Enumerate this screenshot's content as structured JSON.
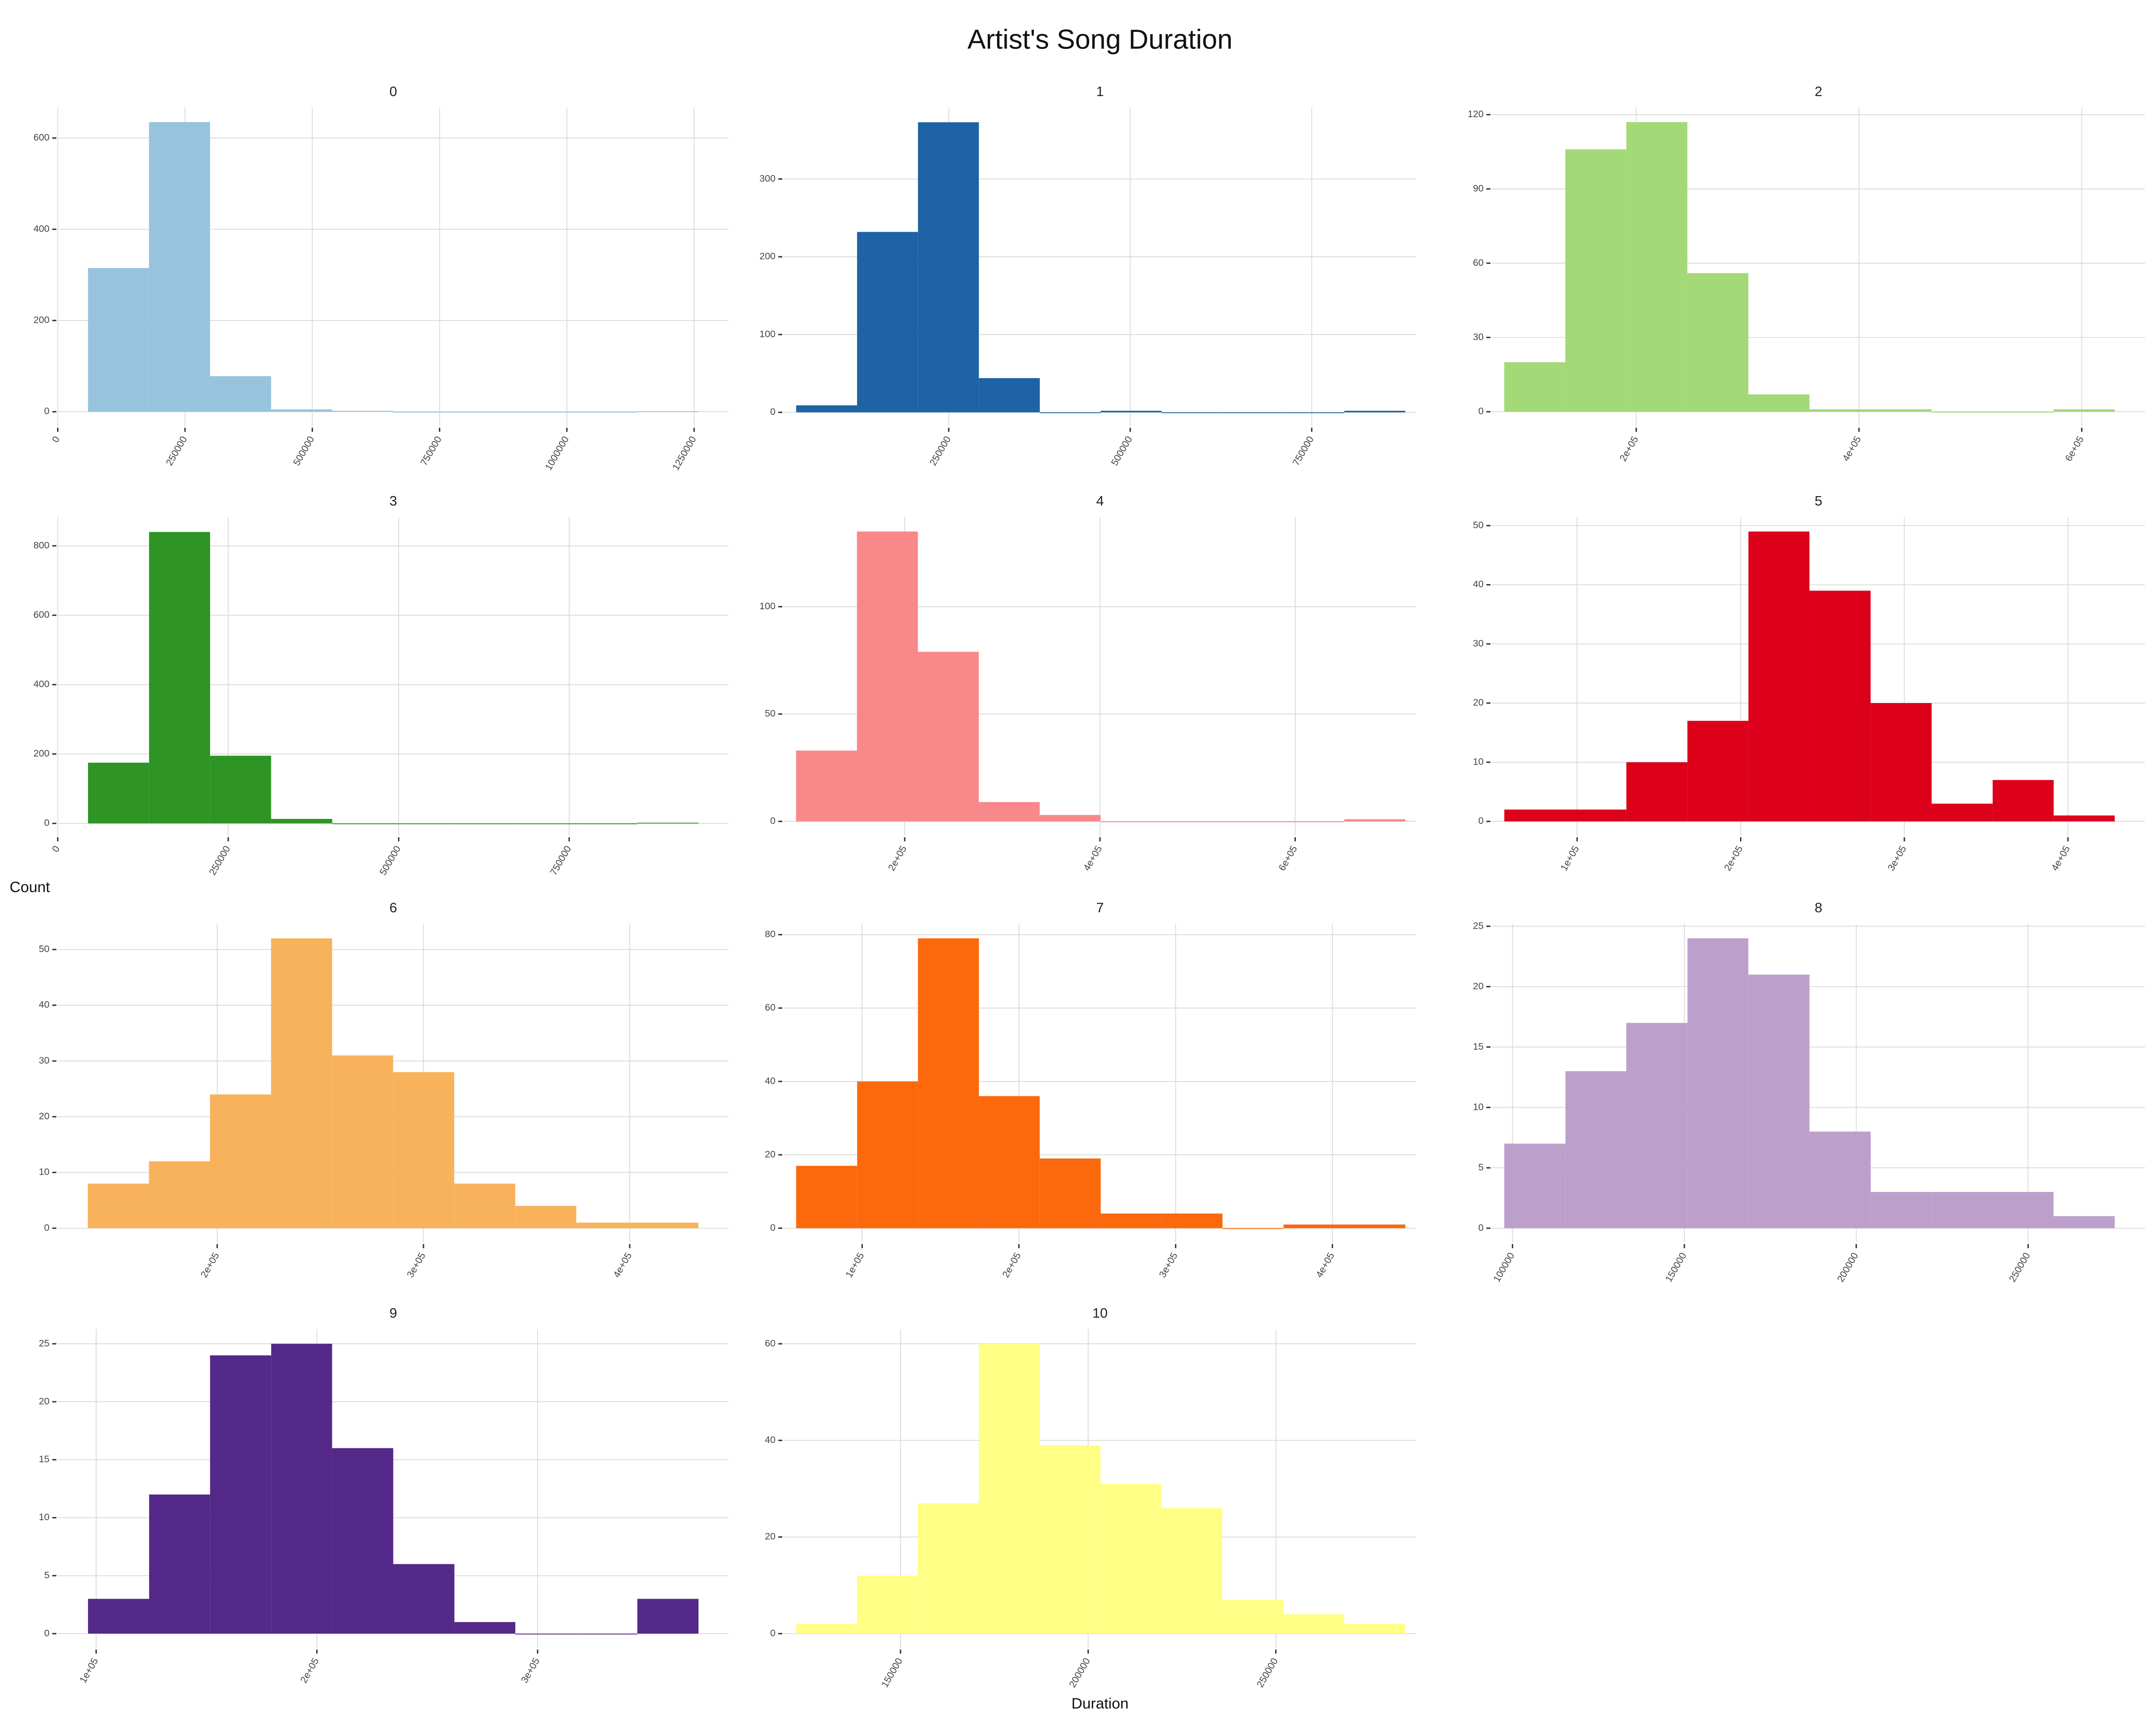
{
  "title": "Artist's Song Duration",
  "x_label": "Duration",
  "y_label": "Count",
  "chart_data": [
    {
      "type": "histogram",
      "title": "0",
      "color": "#98c3dd",
      "grid": true,
      "bins": [
        59400,
        179300,
        299200,
        419100,
        539000,
        658900,
        778800,
        898700,
        1018600,
        1138500,
        1258400
      ],
      "values": [
        315,
        635,
        78,
        5,
        2,
        0,
        0,
        0,
        0,
        1
      ],
      "xlim": [
        0,
        1318000
      ],
      "xticks": [
        0,
        250000,
        500000,
        750000,
        1000000,
        1250000
      ],
      "ylim": [
        -32,
        667
      ],
      "yticks": [
        0,
        200,
        400,
        600
      ]
    },
    {
      "type": "histogram",
      "title": "1",
      "color": "#1d63a5",
      "grid": true,
      "bins": [
        39800,
        123700,
        207600,
        291500,
        375400,
        459300,
        543200,
        627100,
        711000,
        794900,
        878800
      ],
      "values": [
        9,
        232,
        373,
        44,
        0,
        2,
        0,
        0,
        0,
        2
      ],
      "xlim": [
        22700,
        894000
      ],
      "xticks": [
        250000,
        500000,
        750000
      ],
      "ylim": [
        -18,
        392
      ],
      "yticks": [
        0,
        100,
        200,
        300
      ]
    },
    {
      "type": "histogram",
      "title": "2",
      "color": "#a4d978",
      "grid": true,
      "bins": [
        81500,
        136300,
        191100,
        245900,
        300700,
        355600,
        410400,
        465200,
        520000,
        574800,
        629600
      ],
      "values": [
        20,
        106,
        117,
        56,
        7,
        1,
        1,
        0,
        0,
        1
      ],
      "xlim": [
        70400,
        656800
      ],
      "xticks": [
        {
          "value": 200000,
          "label": "2e+05"
        },
        {
          "value": 400000,
          "label": "4e+05"
        },
        {
          "value": 600000,
          "label": "6e+05"
        }
      ],
      "ylim": [
        -5.9,
        122.9
      ],
      "yticks": [
        0,
        30,
        60,
        90,
        120
      ]
    },
    {
      "type": "histogram",
      "title": "3",
      "color": "#2e9424",
      "grid": true,
      "bins": [
        44400,
        133900,
        223400,
        312900,
        402500,
        492000,
        581500,
        671000,
        760500,
        850000,
        939500
      ],
      "values": [
        175,
        840,
        195,
        13,
        0,
        0,
        0,
        0,
        0,
        2
      ],
      "xlim": [
        0,
        984000
      ],
      "xticks": [
        0,
        250000,
        500000,
        750000
      ],
      "ylim": [
        -36,
        883
      ],
      "yticks": [
        0,
        200,
        400,
        600,
        800
      ]
    },
    {
      "type": "histogram",
      "title": "4",
      "color": "#f8888a",
      "grid": true,
      "bins": [
        88700,
        151100,
        213500,
        275900,
        338300,
        400700,
        463100,
        525500,
        587900,
        650300,
        712700
      ],
      "values": [
        33,
        135,
        79,
        9,
        3,
        0,
        0,
        0,
        0,
        1
      ],
      "xlim": [
        76100,
        724000
      ],
      "xticks": [
        {
          "value": 200000,
          "label": "2e+05"
        },
        {
          "value": 400000,
          "label": "4e+05"
        },
        {
          "value": 600000,
          "label": "6e+05"
        }
      ],
      "ylim": [
        -6.75,
        141.75
      ],
      "yticks": [
        0,
        50,
        100
      ]
    },
    {
      "type": "histogram",
      "title": "5",
      "color": "#dc001a",
      "grid": true,
      "bins": [
        55500,
        92800,
        130100,
        167400,
        204700,
        242000,
        279400,
        316700,
        354000,
        391300,
        428600
      ],
      "values": [
        2,
        2,
        10,
        17,
        49,
        39,
        20,
        3,
        7,
        1
      ],
      "xlim": [
        47900,
        447100
      ],
      "xticks": [
        {
          "value": 100000,
          "label": "1e+05"
        },
        {
          "value": 200000,
          "label": "2e+05"
        },
        {
          "value": 300000,
          "label": "3e+05"
        },
        {
          "value": 400000,
          "label": "4e+05"
        }
      ],
      "ylim": [
        -2.45,
        51.45
      ],
      "yticks": [
        0,
        10,
        20,
        30,
        40,
        50
      ]
    },
    {
      "type": "histogram",
      "title": "6",
      "color": "#f9b25c",
      "grid": true,
      "bins": [
        137300,
        166900,
        196500,
        226100,
        255700,
        285300,
        314900,
        344500,
        374100,
        403700,
        433300
      ],
      "values": [
        8,
        12,
        24,
        52,
        31,
        28,
        8,
        4,
        1,
        1
      ],
      "xlim": [
        122700,
        448000
      ],
      "xticks": [
        {
          "value": 200000,
          "label": "2e+05"
        },
        {
          "value": 300000,
          "label": "3e+05"
        },
        {
          "value": 400000,
          "label": "4e+05"
        }
      ],
      "ylim": [
        -2.6,
        54.6
      ],
      "yticks": [
        0,
        10,
        20,
        30,
        40,
        50
      ]
    },
    {
      "type": "histogram",
      "title": "7",
      "color": "#fb690c",
      "grid": true,
      "bins": [
        57900,
        96800,
        135600,
        174500,
        213300,
        252200,
        291100,
        329900,
        368800,
        407600,
        446500
      ],
      "values": [
        17,
        40,
        79,
        36,
        19,
        4,
        4,
        0,
        1,
        1
      ],
      "xlim": [
        50000,
        453500
      ],
      "xticks": [
        {
          "value": 100000,
          "label": "1e+05"
        },
        {
          "value": 200000,
          "label": "2e+05"
        },
        {
          "value": 300000,
          "label": "3e+05"
        },
        {
          "value": 400000,
          "label": "4e+05"
        }
      ],
      "ylim": [
        -3.95,
        82.95
      ],
      "yticks": [
        0,
        20,
        40,
        60,
        80
      ]
    },
    {
      "type": "histogram",
      "title": "8",
      "color": "#bca0cb",
      "grid": true,
      "bins": [
        97600,
        115400,
        133100,
        150900,
        168600,
        186400,
        204200,
        221900,
        239700,
        257400,
        275200
      ],
      "values": [
        7,
        13,
        17,
        24,
        21,
        8,
        3,
        3,
        3,
        1
      ],
      "xlim": [
        94000,
        284000
      ],
      "xticks": [
        100000,
        150000,
        200000,
        250000
      ],
      "ylim": [
        -1.2,
        25.2
      ],
      "yticks": [
        0,
        5,
        10,
        15,
        20,
        25
      ]
    },
    {
      "type": "histogram",
      "title": "9",
      "color": "#542989",
      "grid": true,
      "bins": [
        96300,
        124000,
        151600,
        179300,
        206900,
        234600,
        262300,
        289900,
        317600,
        345200,
        372900
      ],
      "values": [
        3,
        12,
        24,
        25,
        16,
        6,
        1,
        0,
        0,
        3
      ],
      "xlim": [
        82600,
        386600
      ],
      "xticks": [
        {
          "value": 100000,
          "label": "1e+05"
        },
        {
          "value": 200000,
          "label": "2e+05"
        },
        {
          "value": 300000,
          "label": "3e+05"
        }
      ],
      "ylim": [
        -1.25,
        26.25
      ],
      "yticks": [
        0,
        5,
        10,
        15,
        20,
        25
      ]
    },
    {
      "type": "histogram",
      "title": "10",
      "color": "#feff84",
      "grid": true,
      "bins": [
        122200,
        138400,
        154600,
        170900,
        187100,
        203300,
        219500,
        235700,
        252000,
        268200,
        284400
      ],
      "values": [
        2,
        12,
        27,
        60,
        39,
        31,
        26,
        7,
        4,
        2
      ],
      "xlim": [
        118900,
        287400
      ],
      "xticks": [
        150000,
        200000,
        250000
      ],
      "ylim": [
        -3,
        63
      ],
      "yticks": [
        0,
        20,
        40,
        60
      ]
    }
  ]
}
